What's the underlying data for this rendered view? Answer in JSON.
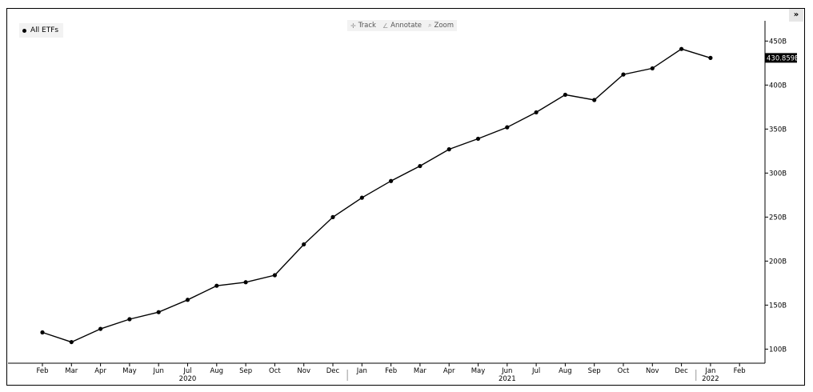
{
  "legend": {
    "label": "All ETFs"
  },
  "toolbar": {
    "track": "Track",
    "annotate": "Annotate",
    "zoom": "Zoom"
  },
  "expand_label": "»",
  "last_value_label": "430.859B",
  "colors": {
    "line": "#000000",
    "last_value_bg": "#000000"
  },
  "chart_data": {
    "type": "line",
    "title": "",
    "xlabel": "",
    "ylabel": "",
    "legend_position": "top-left",
    "grid": false,
    "categories": [
      "Feb",
      "Mar",
      "Apr",
      "May",
      "Jun",
      "Jul",
      "Aug",
      "Sep",
      "Oct",
      "Nov",
      "Dec",
      "Jan",
      "Feb",
      "Mar",
      "Apr",
      "May",
      "Jun",
      "Jul",
      "Aug",
      "Sep",
      "Oct",
      "Nov",
      "Dec",
      "Jan"
    ],
    "x_tick_labels": [
      "Feb",
      "Mar",
      "Apr",
      "May",
      "Jun",
      "Jul",
      "Aug",
      "Sep",
      "Oct",
      "Nov",
      "Dec",
      "Jan",
      "Feb",
      "Mar",
      "Apr",
      "May",
      "Jun",
      "Jul",
      "Aug",
      "Sep",
      "Oct",
      "Nov",
      "Dec",
      "Jan",
      "Feb"
    ],
    "year_labels": [
      {
        "label": "2020",
        "month_index": 5
      },
      {
        "label": "2021",
        "month_index": 16
      },
      {
        "label": "2022",
        "month_index": 23
      }
    ],
    "year_dividers": [
      10.5,
      22.5
    ],
    "y_ticks": [
      100,
      150,
      200,
      250,
      300,
      350,
      400,
      450
    ],
    "y_tick_labels": [
      "100B",
      "150B",
      "200B",
      "250B",
      "300B",
      "350B",
      "400B",
      "450B"
    ],
    "ylim": [
      84,
      473
    ],
    "series": [
      {
        "name": "All ETFs",
        "values": [
          119,
          108,
          123,
          134,
          142,
          156,
          172,
          176,
          184,
          219,
          250,
          272,
          291,
          308,
          327,
          339,
          352,
          369,
          389,
          383,
          412,
          419,
          441,
          430.859
        ]
      }
    ]
  }
}
